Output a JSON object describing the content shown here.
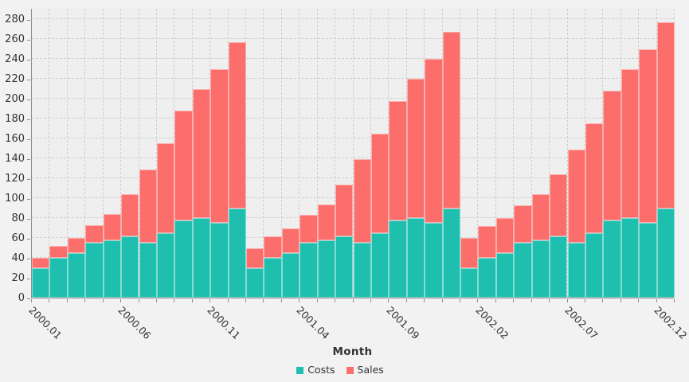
{
  "colors": {
    "costs": "#1FBFAF",
    "sales": "#FB6E6B",
    "plot_background": "#EFEFEF",
    "page_background": "#F2F2F2",
    "gridline": "#CFCFCF",
    "axis_line": "#8C8C8C",
    "text": "#333333"
  },
  "chart_data": {
    "type": "bar",
    "stacked": true,
    "title": "",
    "xlabel": "Month",
    "ylabel": "",
    "grid": "dashed",
    "legend_position": "bottom",
    "ylim": [
      0,
      280
    ],
    "y_ticks": [
      0,
      20,
      40,
      60,
      80,
      100,
      120,
      140,
      160,
      180,
      200,
      220,
      240,
      260,
      280
    ],
    "x_label_every": 5,
    "x_tick_labels_shown": [
      "2000.01",
      "2000.06",
      "2000.11",
      "2001.04",
      "2001.09",
      "2002.02",
      "2002.07",
      "2002.12"
    ],
    "categories": [
      "2000.01",
      "2000.02",
      "2000.03",
      "2000.04",
      "2000.05",
      "2000.06",
      "2000.07",
      "2000.08",
      "2000.09",
      "2000.10",
      "2000.11",
      "2000.12",
      "2001.01",
      "2001.02",
      "2001.03",
      "2001.04",
      "2001.05",
      "2001.06",
      "2001.07",
      "2001.08",
      "2001.09",
      "2001.10",
      "2001.11",
      "2001.12",
      "2002.01",
      "2002.02",
      "2002.03",
      "2002.04",
      "2002.05",
      "2002.06",
      "2002.07",
      "2002.08",
      "2002.09",
      "2002.10",
      "2002.11",
      "2002.12"
    ],
    "series": [
      {
        "name": "Costs",
        "color": "#1FBFAF",
        "values": [
          30,
          40,
          45,
          55,
          58,
          62,
          55,
          65,
          78,
          80,
          75,
          90,
          30,
          40,
          45,
          55,
          58,
          62,
          55,
          65,
          78,
          80,
          75,
          90,
          30,
          40,
          45,
          55,
          58,
          62,
          55,
          65,
          78,
          80,
          75,
          90
        ]
      },
      {
        "name": "Sales",
        "color": "#FB6E6B",
        "values": [
          10,
          12,
          15,
          18,
          26,
          42,
          74,
          90,
          110,
          130,
          155,
          167,
          20,
          22,
          25,
          28,
          36,
          52,
          84,
          100,
          120,
          140,
          165,
          177,
          30,
          32,
          35,
          38,
          46,
          62,
          94,
          110,
          130,
          150,
          175,
          187
        ]
      }
    ]
  },
  "legend": {
    "items": [
      {
        "label": "Costs",
        "color": "#1FBFAF"
      },
      {
        "label": "Sales",
        "color": "#FB6E6B"
      }
    ]
  }
}
